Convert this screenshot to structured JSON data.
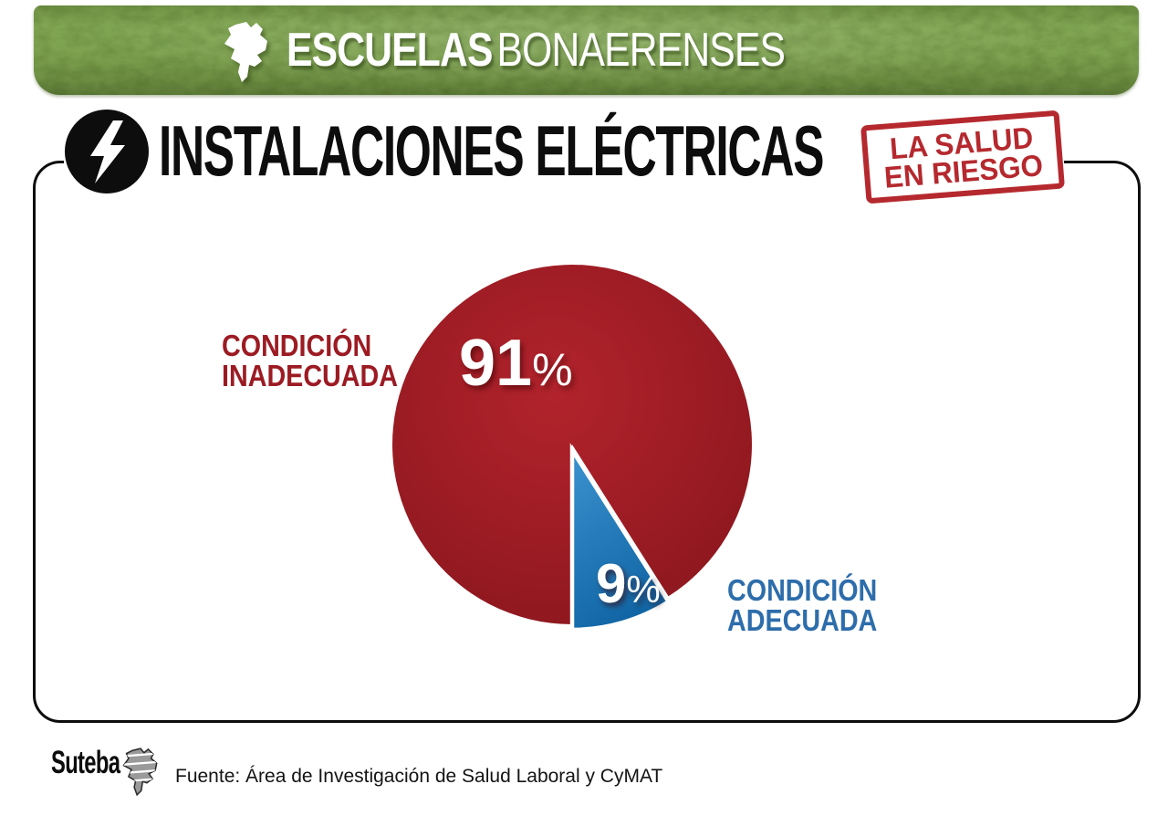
{
  "banner": {
    "title_bold": "ESCUELAS",
    "title_light": "BONAERENSES"
  },
  "header": {
    "title": "INSTALACIONES ELÉCTRICAS",
    "stamp": {
      "line1": "LA SALUD",
      "line2": "EN RIESGO"
    }
  },
  "chart_data": {
    "type": "pie",
    "title": "INSTALACIONES ELÉCTRICAS",
    "categories": [
      "CONDICIÓN INADECUADA",
      "CONDICIÓN ADECUADA"
    ],
    "values": [
      91,
      9
    ],
    "unit": "%",
    "colors": [
      "#a01d25",
      "#1d76b5"
    ],
    "label_colors": [
      "#9c1b23",
      "#2d6dab"
    ],
    "legend_position": "labels-beside-slices",
    "value_labels_position": "inside-slices"
  },
  "footer": {
    "logo_text": "Suteba",
    "source": "Fuente: Área de Investigación de Salud Laboral y CyMAT"
  },
  "icons": {
    "banner_map": "buenos-aires-province-map-icon",
    "title_bolt": "lightning-bolt-icon",
    "footer_logo_map": "suteba-province-map-icon"
  },
  "colors": {
    "banner_green": "#7da24f",
    "stamp_red": "#b5292e",
    "pie_red": "#a01d25",
    "pie_blue": "#1d76b5",
    "title_black": "#0d0d0d"
  }
}
